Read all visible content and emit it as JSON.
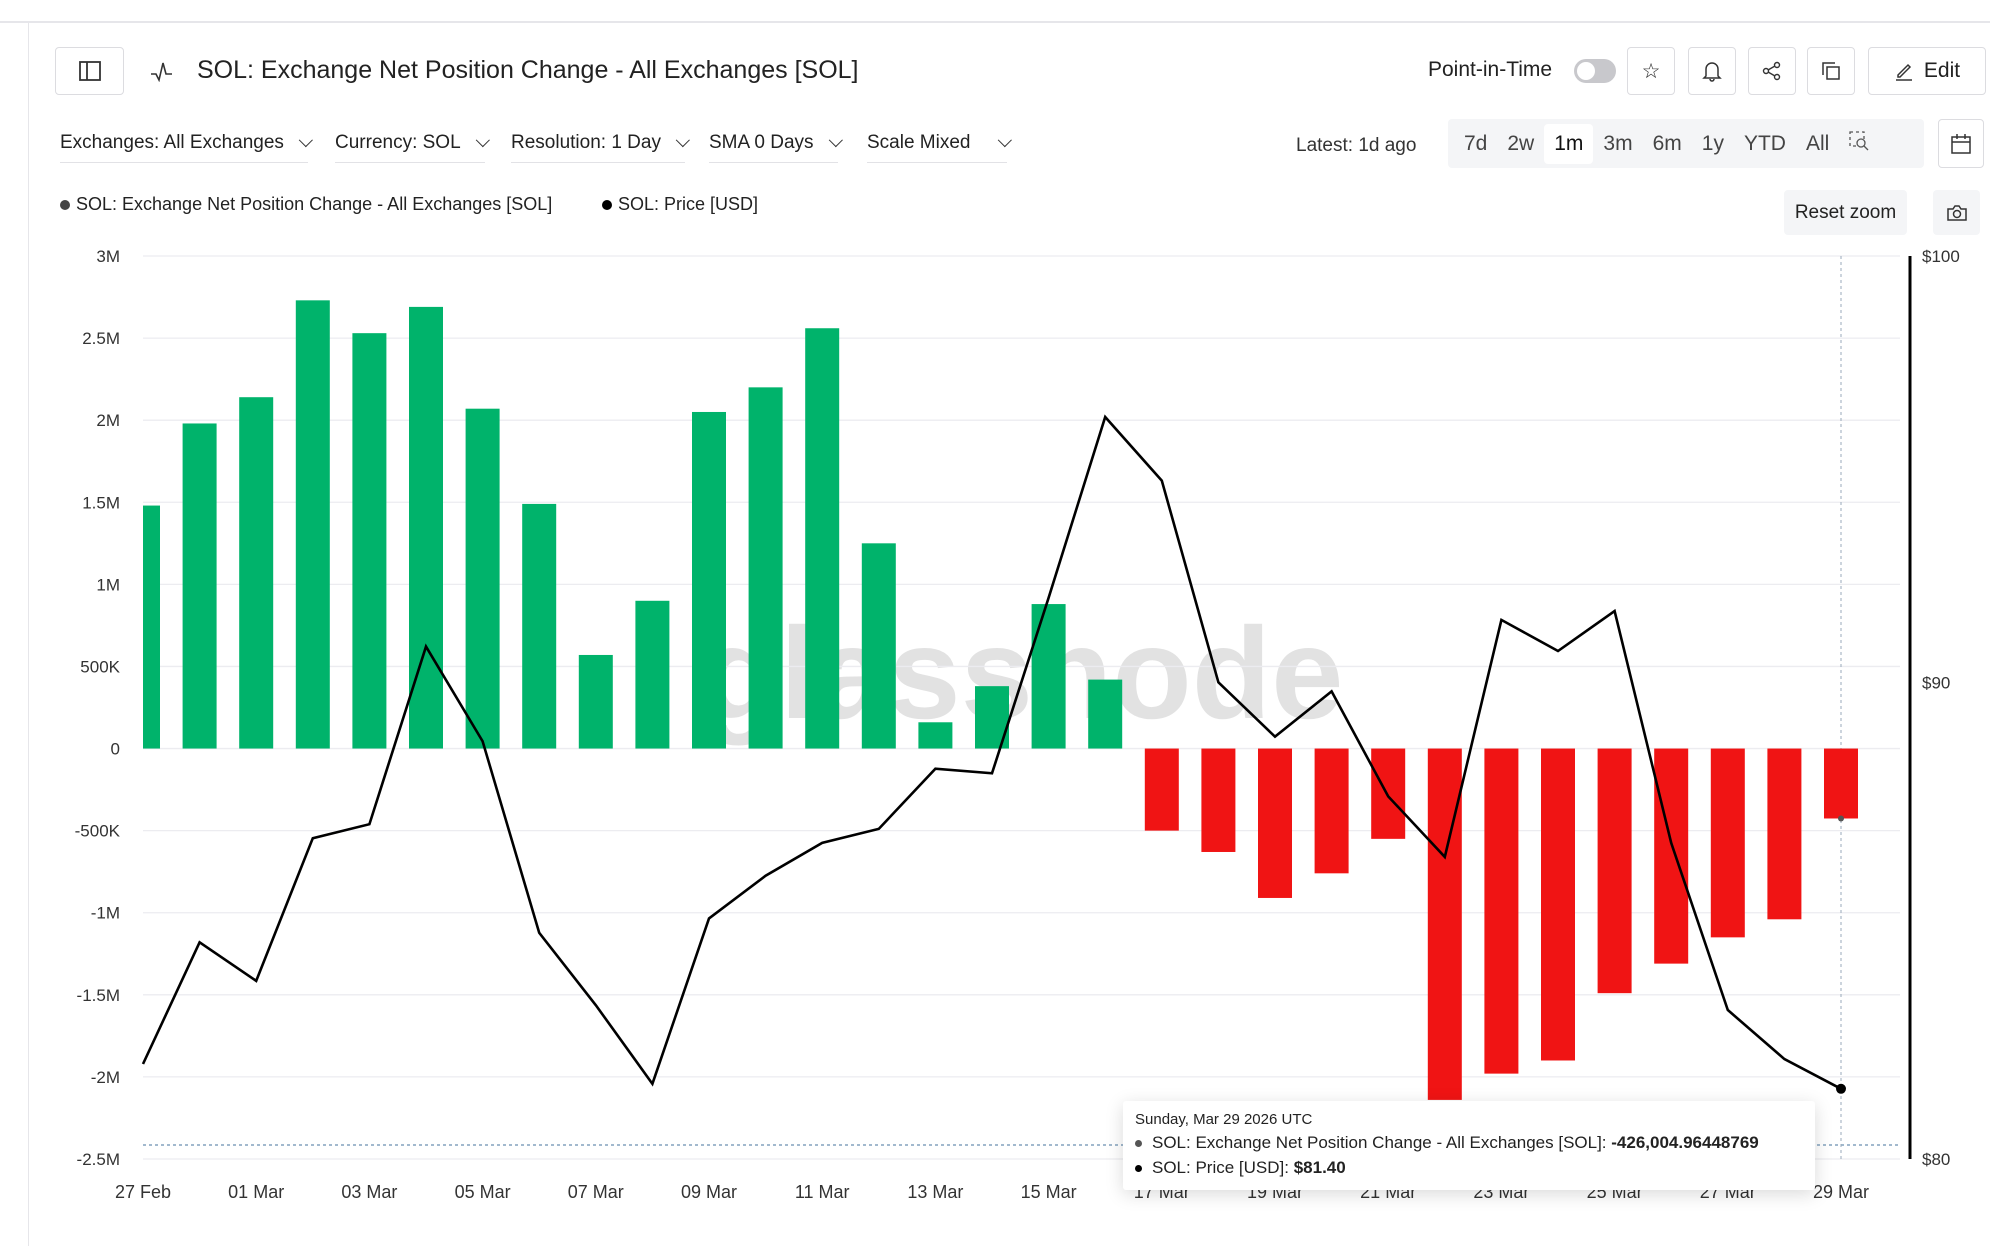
{
  "header": {
    "title": "SOL: Exchange Net Position Change - All Exchanges [SOL]",
    "point_in_time": "Point-in-Time",
    "edit": "Edit"
  },
  "filters": [
    "Exchanges: All Exchanges",
    "Currency: SOL",
    "Resolution: 1 Day",
    "SMA 0 Days",
    "Scale Mixed"
  ],
  "latest": "Latest: 1d ago",
  "ranges": [
    "7d",
    "2w",
    "1m",
    "3m",
    "6m",
    "1y",
    "YTD",
    "All"
  ],
  "active_range": "1m",
  "reset_zoom": "Reset zoom",
  "watermark": "glassnode",
  "tooltip": {
    "date": "Sunday, Mar 29 2026 UTC",
    "s1_label": "SOL: Exchange Net Position Change - All Exchanges [SOL]: ",
    "s1_value": "-426,004.96448769",
    "s2_label": "SOL: Price [USD]: ",
    "s2_value": "$81.40"
  },
  "colors": {
    "positive": "#00b36b",
    "negative": "#f01414",
    "price": "#000000"
  },
  "chart_data": {
    "type": "bar+line",
    "legend": [
      "SOL: Exchange Net Position Change - All Exchanges [SOL]",
      "SOL: Price [USD]"
    ],
    "x": [
      "27 Feb",
      "28 Feb",
      "01 Mar",
      "02 Mar",
      "03 Mar",
      "04 Mar",
      "05 Mar",
      "06 Mar",
      "07 Mar",
      "08 Mar",
      "09 Mar",
      "10 Mar",
      "11 Mar",
      "12 Mar",
      "13 Mar",
      "14 Mar",
      "15 Mar",
      "16 Mar",
      "17 Mar",
      "18 Mar",
      "19 Mar",
      "20 Mar",
      "21 Mar",
      "22 Mar",
      "23 Mar",
      "24 Mar",
      "25 Mar",
      "26 Mar",
      "27 Mar",
      "28 Mar",
      "29 Mar"
    ],
    "xticks": [
      "27 Feb",
      "01 Mar",
      "03 Mar",
      "05 Mar",
      "07 Mar",
      "09 Mar",
      "11 Mar",
      "13 Mar",
      "15 Mar",
      "17 Mar",
      "19 Mar",
      "21 Mar",
      "23 Mar",
      "25 Mar",
      "27 Mar",
      "29 Mar"
    ],
    "series": [
      {
        "name": "SOL: Exchange Net Position Change - All Exchanges [SOL]",
        "type": "bar",
        "axis": "left",
        "values": [
          1480000,
          1980000,
          2140000,
          2730000,
          2530000,
          2690000,
          2070000,
          1490000,
          570000,
          900000,
          2050000,
          2200000,
          2560000,
          1250000,
          160000,
          380000,
          880000,
          420000,
          -500000,
          -630000,
          -910000,
          -760000,
          -550000,
          -2140000,
          -1980000,
          -1900000,
          -1490000,
          -1310000,
          -1150000,
          -1040000,
          -426004.96448769
        ]
      },
      {
        "name": "SOL: Price [USD]",
        "type": "line",
        "axis": "right",
        "values": [
          81.9,
          84.4,
          83.6,
          86.6,
          86.9,
          90.8,
          88.7,
          84.6,
          83.1,
          81.5,
          84.9,
          85.8,
          86.5,
          86.8,
          88.1,
          88.0,
          91.9,
          96.1,
          94.6,
          90.0,
          88.8,
          89.8,
          87.5,
          86.2,
          91.4,
          90.7,
          91.6,
          86.5,
          83.0,
          82.0,
          81.4
        ]
      }
    ],
    "left_axis": {
      "ticks": [
        "3M",
        "2.5M",
        "2M",
        "1.5M",
        "1M",
        "500K",
        "0",
        "-500K",
        "-1M",
        "-1.5M",
        "-2M",
        "-2.5M"
      ],
      "values": [
        3000000,
        2500000,
        2000000,
        1500000,
        1000000,
        500000,
        0,
        -500000,
        -1000000,
        -1500000,
        -2000000,
        -2500000
      ],
      "range": [
        -2500000,
        3000000
      ]
    },
    "right_axis": {
      "scale": "log",
      "ticks": [
        "$100",
        "$90",
        "$80"
      ],
      "values": [
        100,
        90,
        80
      ],
      "range": [
        80,
        100
      ]
    },
    "grid": true
  }
}
